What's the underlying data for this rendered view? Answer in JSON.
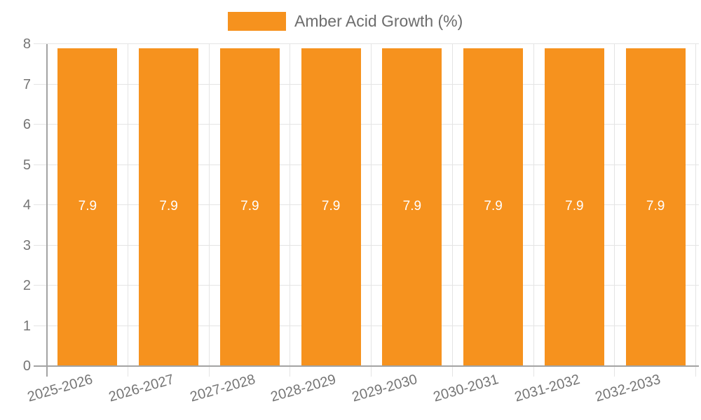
{
  "chart_data": {
    "type": "bar",
    "categories": [
      "2025-2026",
      "2026-2027",
      "2027-2028",
      "2028-2029",
      "2029-2030",
      "2030-2031",
      "2031-2032",
      "2032-2033"
    ],
    "series": [
      {
        "name": "Amber Acid Growth (%)",
        "values": [
          7.9,
          7.9,
          7.9,
          7.9,
          7.9,
          7.9,
          7.9,
          7.9
        ]
      }
    ],
    "bar_labels": [
      "7.9",
      "7.9",
      "7.9",
      "7.9",
      "7.9",
      "7.9",
      "7.9",
      "7.9"
    ],
    "title": "",
    "xlabel": "",
    "ylabel": "",
    "ylim": [
      0,
      8
    ],
    "y_ticks": [
      0,
      1,
      2,
      3,
      4,
      5,
      6,
      7,
      8
    ],
    "grid": true,
    "legend_position": "top",
    "colors": {
      "bar": "#f6921e",
      "bar_label": "#ffffff",
      "axis_text": "#757575",
      "legend_text": "#6d6d6d",
      "gridline": "#e4e4e4",
      "axis_line": "#a3a3a3"
    }
  }
}
